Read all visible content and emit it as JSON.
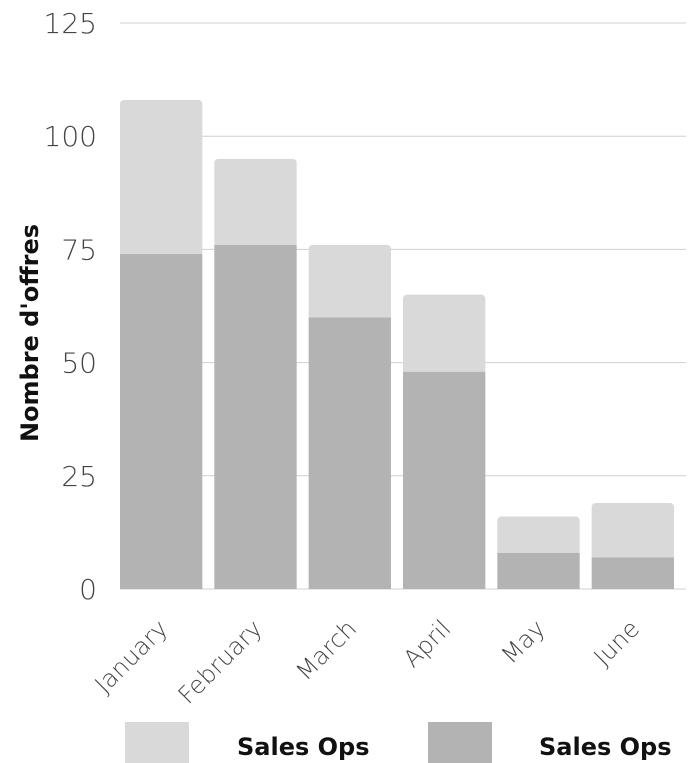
{
  "chart_data": {
    "type": "bar",
    "stacked": true,
    "categories": [
      "January",
      "February",
      "March",
      "April",
      "May",
      "June"
    ],
    "series": [
      {
        "name": "Sales Ops",
        "color": "#b3b3b3",
        "values": [
          74,
          76,
          60,
          48,
          8,
          7
        ]
      },
      {
        "name": "Sales Ops",
        "color": "#d9d9d9",
        "values": [
          34,
          19,
          16,
          17,
          8,
          12
        ]
      }
    ],
    "totals": [
      108,
      95,
      76,
      65,
      16,
      19
    ],
    "title": "",
    "xlabel": "",
    "ylabel": "Nombre d'offres",
    "ylim": [
      0,
      125
    ],
    "yticks": [
      0,
      25,
      50,
      75,
      100,
      125
    ],
    "grid": true,
    "legend": "bottom",
    "legend_items": [
      {
        "label": "Sales Ops",
        "color": "#d9d9d9"
      },
      {
        "label": "Sales Ops",
        "color": "#b3b3b3"
      }
    ]
  }
}
